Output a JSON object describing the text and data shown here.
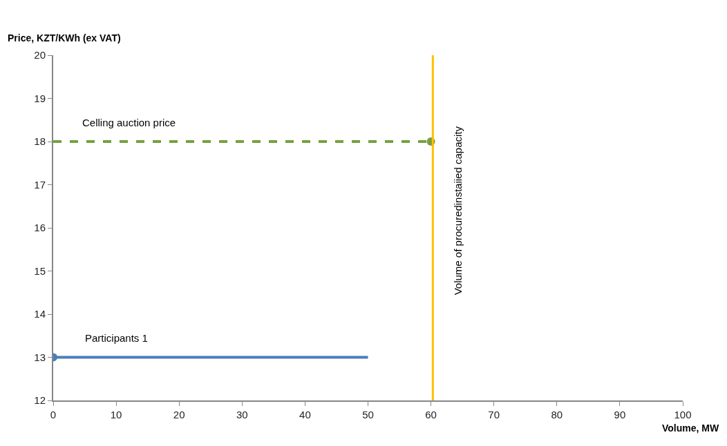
{
  "chart_data": {
    "type": "line",
    "xlabel": "Volume, MW",
    "ylabel": "Price, KZT/KWh (ex VAT)",
    "xlim": [
      0,
      100
    ],
    "xticks": [
      0,
      10,
      20,
      30,
      40,
      50,
      60,
      70,
      80,
      90,
      100
    ],
    "ylim": [
      12,
      20
    ],
    "yticks": [
      12,
      13,
      14,
      15,
      16,
      17,
      18,
      19,
      20
    ],
    "legend": false,
    "series": [
      {
        "name": "Celling auction price",
        "color": "#77a03f",
        "x": [
          0,
          60
        ],
        "values": [
          18,
          18
        ],
        "line_style": "dashed"
      },
      {
        "name": "Participants 1",
        "color": "#4a7ebb",
        "x": [
          0,
          50
        ],
        "values": [
          13,
          13
        ],
        "line_style": "solid"
      },
      {
        "type": "scatter",
        "color": "#77a03f",
        "x": [
          60
        ],
        "values": [
          18
        ],
        "marker": "circle"
      },
      {
        "type": "scatter",
        "color": "#4a7ebb",
        "x": [
          0
        ],
        "values": [
          13
        ],
        "marker": "circle"
      }
    ],
    "ref_lines": [
      {
        "axis": "x",
        "value": 60.3,
        "label": "Volume of procuredinstaiied capacity",
        "color": "#ffc000",
        "line_style": "solid"
      }
    ]
  }
}
